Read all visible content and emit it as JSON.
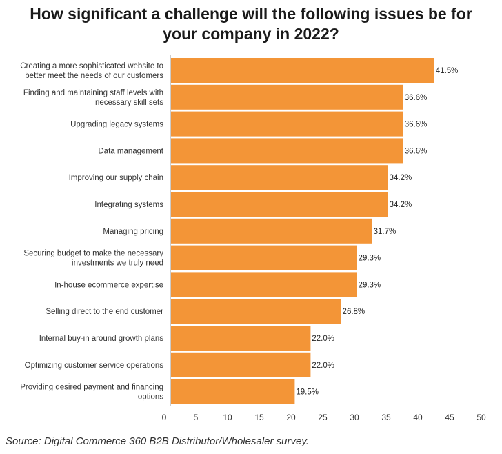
{
  "chart_data": {
    "type": "bar",
    "orientation": "horizontal",
    "title": "How significant a challenge will the following issues be for your company in 2022?",
    "title_lines": [
      "How significant a challenge will the following issues be for",
      "your company in 2022?"
    ],
    "categories": [
      [
        "Creating a more sophisticated website to",
        "better meet the needs of our customers"
      ],
      [
        "Finding and maintaining staff levels with",
        "necessary skill sets"
      ],
      [
        "Upgrading legacy systems"
      ],
      [
        "Data management"
      ],
      [
        "Improving our supply chain"
      ],
      [
        "Integrating systems"
      ],
      [
        "Managing pricing"
      ],
      [
        "Securing budget to make the necessary",
        "investments we truly need"
      ],
      [
        "In-house ecommerce expertise"
      ],
      [
        "Selling direct to the end customer"
      ],
      [
        "Internal buy-in around growth plans"
      ],
      [
        "Optimizing customer service operations"
      ],
      [
        "Providing desired payment and financing",
        "options"
      ]
    ],
    "values": [
      41.5,
      36.6,
      36.6,
      36.6,
      34.2,
      34.2,
      31.7,
      29.3,
      29.3,
      26.8,
      22.0,
      22.0,
      19.5
    ],
    "value_labels": [
      "41.5%",
      "36.6%",
      "36.6%",
      "36.6%",
      "34.2%",
      "34.2%",
      "31.7%",
      "29.3%",
      "29.3%",
      "26.8%",
      "22.0%",
      "22.0%",
      "19.5%"
    ],
    "xlim": [
      0,
      50
    ],
    "xticks": [
      0,
      5,
      10,
      15,
      20,
      25,
      30,
      35,
      40,
      45,
      50
    ],
    "xlabel": "",
    "ylabel": "",
    "bar_color": "#F39537",
    "grid": false
  },
  "source": "Source: Digital Commerce 360 B2B Distributor/Wholesaler survey."
}
